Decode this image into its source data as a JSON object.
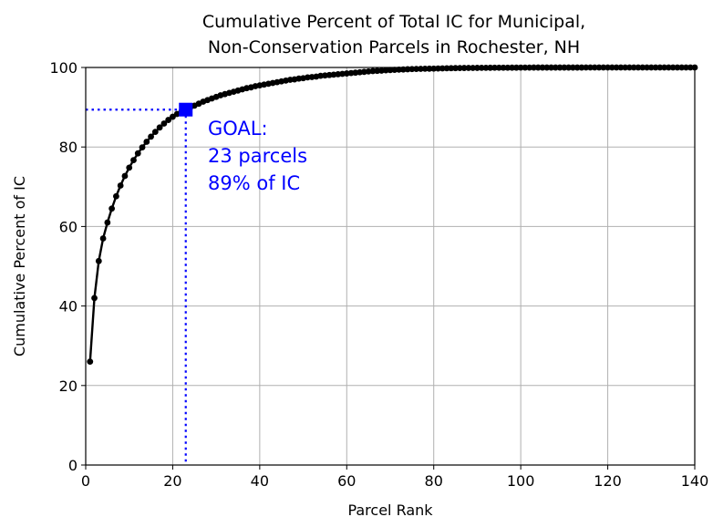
{
  "chart_data": {
    "type": "line",
    "title_lines": [
      "Cumulative Percent of Total IC for Municipal,",
      "Non-Conservation Parcels in Rochester, NH"
    ],
    "xlabel": "Parcel Rank",
    "ylabel": "Cumulative Percent of IC",
    "xlim": [
      0,
      140
    ],
    "ylim": [
      0,
      100
    ],
    "xticks": [
      0,
      20,
      40,
      60,
      80,
      100,
      120,
      140
    ],
    "yticks": [
      0,
      20,
      40,
      60,
      80,
      100
    ],
    "grid": true,
    "series": [
      {
        "color": "#000000",
        "marker": "circle",
        "x": [
          1,
          2,
          3,
          4,
          5,
          6,
          7,
          8,
          9,
          10,
          11,
          12,
          13,
          14,
          15,
          16,
          17,
          18,
          19,
          20,
          21,
          22,
          23,
          24,
          25,
          26,
          27,
          28,
          29,
          30,
          31,
          32,
          33,
          34,
          35,
          36,
          37,
          38,
          39,
          40,
          41,
          42,
          43,
          44,
          45,
          46,
          47,
          48,
          49,
          50,
          51,
          52,
          53,
          54,
          55,
          56,
          57,
          58,
          59,
          60,
          61,
          62,
          63,
          64,
          65,
          66,
          67,
          68,
          69,
          70,
          71,
          72,
          73,
          74,
          75,
          76,
          77,
          78,
          79,
          80,
          81,
          82,
          83,
          84,
          85,
          86,
          87,
          88,
          89,
          90,
          91,
          92,
          93,
          94,
          95,
          96,
          97,
          98,
          99,
          100,
          101,
          102,
          103,
          104,
          105,
          106,
          107,
          108,
          109,
          110,
          111,
          112,
          113,
          114,
          115,
          116,
          117,
          118,
          119,
          120,
          121,
          122,
          123,
          124,
          125,
          126,
          127,
          128,
          129,
          130,
          131,
          132,
          133,
          134,
          135,
          136,
          137,
          138,
          139,
          140
        ],
        "y": [
          26,
          42,
          51.3,
          57,
          61,
          64.5,
          67.6,
          70.3,
          72.7,
          74.8,
          76.7,
          78.4,
          79.9,
          81.3,
          82.6,
          83.8,
          84.9,
          85.9,
          86.8,
          87.6,
          88.3,
          88.9,
          89.4,
          89.9,
          90.4,
          90.9,
          91.4,
          91.8,
          92.2,
          92.6,
          93.0,
          93.3,
          93.6,
          93.9,
          94.2,
          94.5,
          94.8,
          95.0,
          95.3,
          95.5,
          95.7,
          95.9,
          96.1,
          96.3,
          96.5,
          96.7,
          96.9,
          97.0,
          97.2,
          97.3,
          97.5,
          97.6,
          97.7,
          97.9,
          98.0,
          98.1,
          98.2,
          98.3,
          98.4,
          98.5,
          98.6,
          98.7,
          98.8,
          98.9,
          99.0,
          99.1,
          99.15,
          99.2,
          99.3,
          99.35,
          99.4,
          99.45,
          99.5,
          99.55,
          99.6,
          99.62,
          99.65,
          99.68,
          99.7,
          99.72,
          99.75,
          99.77,
          99.8,
          99.82,
          99.84,
          99.86,
          99.87,
          99.88,
          99.89,
          99.9,
          99.91,
          99.92,
          99.93,
          99.94,
          99.94,
          99.95,
          99.95,
          99.96,
          99.96,
          99.97,
          99.97,
          99.97,
          99.98,
          99.98,
          99.98,
          99.98,
          99.99,
          99.99,
          99.99,
          99.99,
          99.99,
          99.99,
          99.99,
          99.99,
          100,
          100,
          100,
          100,
          100,
          100,
          100,
          100,
          100,
          100,
          100,
          100,
          100,
          100,
          100,
          100,
          100,
          100,
          100,
          100,
          100,
          100,
          100,
          100,
          100,
          100
        ]
      }
    ],
    "goal": {
      "x": 23,
      "y": 89.4,
      "color": "#0000ff",
      "annotation_lines": [
        "GOAL:",
        "23 parcels",
        "89% of IC"
      ]
    }
  }
}
